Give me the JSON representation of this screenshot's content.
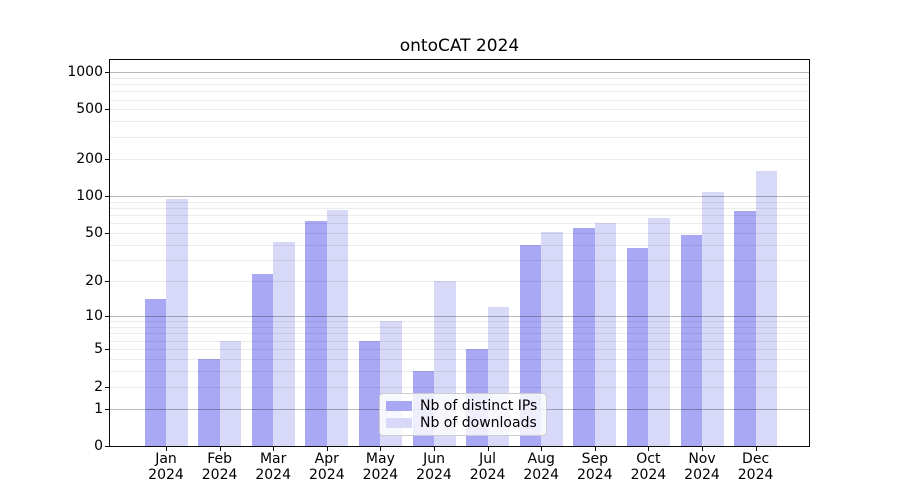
{
  "title": "ontoCAT 2024",
  "chart_data": {
    "type": "bar",
    "title": "ontoCAT 2024",
    "categories": [
      "Jan 2024",
      "Feb 2024",
      "Mar 2024",
      "Apr 2024",
      "May 2024",
      "Jun 2024",
      "Jul 2024",
      "Aug 2024",
      "Sep 2024",
      "Oct 2024",
      "Nov 2024",
      "Dec 2024"
    ],
    "series": [
      {
        "name": "Nb of distinct IPs",
        "color": "#a8a8f4",
        "values": [
          14,
          4,
          23,
          63,
          6,
          3,
          5,
          40,
          55,
          38,
          48,
          76
        ]
      },
      {
        "name": "Nb of downloads",
        "color": "#d8d8f9",
        "values": [
          95,
          6,
          42,
          77,
          9,
          20,
          12,
          51,
          61,
          67,
          107,
          160
        ]
      }
    ],
    "xlabel": "",
    "ylabel": "",
    "yscale": "log1p",
    "y_ticks": [
      0,
      1,
      2,
      5,
      10,
      20,
      50,
      100,
      200,
      500,
      1000
    ],
    "ylim": [
      0,
      1250
    ],
    "grid": true,
    "legend_position": "inside lower center"
  }
}
